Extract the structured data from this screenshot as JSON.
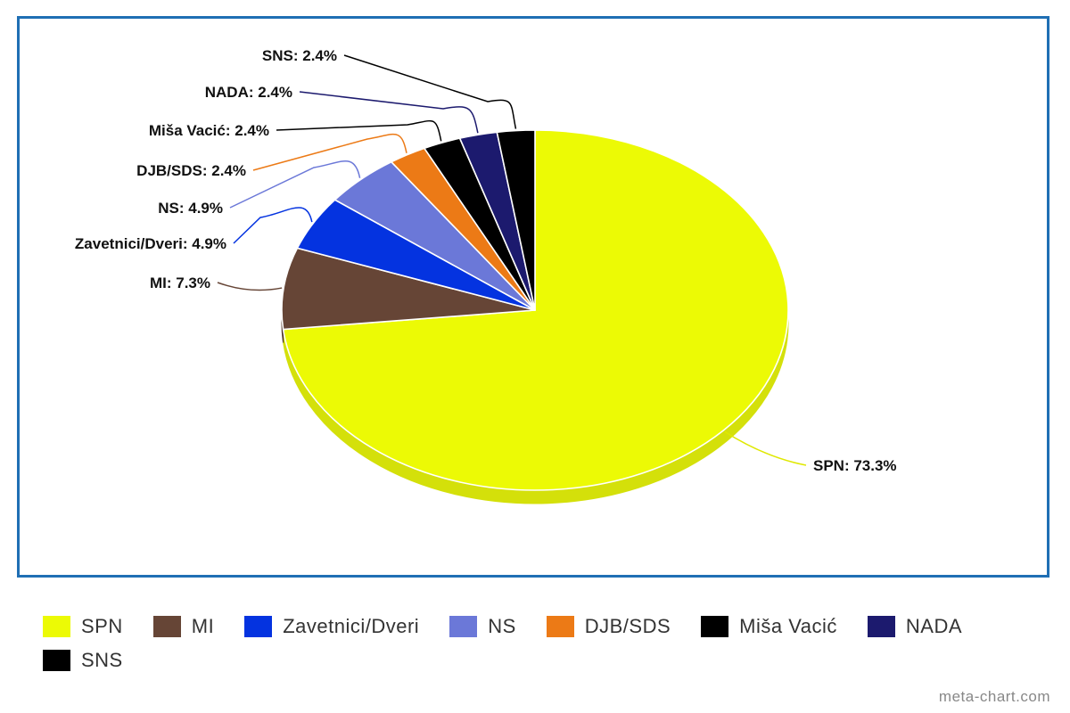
{
  "chart_data": {
    "type": "pie",
    "title": "",
    "slices": [
      {
        "label": "SPN",
        "value": 73.3,
        "display": "SPN: 73.3%",
        "color": "#ecfa05",
        "side_color": "#d4e00a"
      },
      {
        "label": "MI",
        "value": 7.3,
        "display": "MI: 7.3%",
        "color": "#664536",
        "side_color": "#4f3529"
      },
      {
        "label": "Zavetnici/Dveri",
        "value": 4.9,
        "display": "Zavetnici/Dveri: 4.9%",
        "color": "#0433e0",
        "side_color": "#0328b0"
      },
      {
        "label": "NS",
        "value": 4.9,
        "display": "NS: 4.9%",
        "color": "#6b78d8",
        "side_color": "#5460b0"
      },
      {
        "label": "DJB/SDS",
        "value": 2.4,
        "display": "DJB/SDS: 2.4%",
        "color": "#ec7a16",
        "side_color": "#c46210"
      },
      {
        "label": "Miša Vacić",
        "value": 2.4,
        "display": "Miša Vacić: 2.4%",
        "color": "#000000",
        "side_color": "#000000"
      },
      {
        "label": "NADA",
        "value": 2.4,
        "display": "NADA: 2.4%",
        "color": "#1c1a6e",
        "side_color": "#14124f"
      },
      {
        "label": "SNS",
        "value": 2.4,
        "display": "SNS: 2.4%",
        "color": "#000000",
        "side_color": "#000000"
      }
    ],
    "legend_position": "bottom"
  },
  "watermark": "meta-chart.com"
}
